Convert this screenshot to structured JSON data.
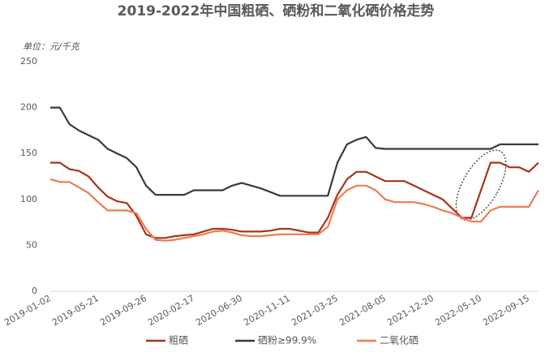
{
  "chart_data": {
    "type": "line",
    "title": "2019-2022年中国粗硒、硒粉和二氧化硒价格走势",
    "y_label": "单位：元/千克",
    "categories": [
      "2019-01-02",
      null,
      null,
      null,
      null,
      "2019-05-21",
      null,
      null,
      null,
      null,
      "2019-09-26",
      null,
      null,
      null,
      null,
      "2020-02-17",
      null,
      null,
      null,
      null,
      "2020-06-30",
      null,
      null,
      null,
      null,
      "2020-11-11",
      null,
      null,
      null,
      null,
      "2021-03-25",
      null,
      null,
      null,
      null,
      "2021-08-05",
      null,
      null,
      null,
      null,
      "2021-12-20",
      null,
      null,
      null,
      null,
      "2022-05-10",
      null,
      null,
      null,
      null,
      "2022-09-15",
      null
    ],
    "series": [
      {
        "name": "粗硒",
        "color": "#a8341c",
        "values": [
          140,
          140,
          133,
          131,
          125,
          113,
          103,
          98,
          96,
          82,
          62,
          58,
          58,
          60,
          61,
          62,
          65,
          68,
          68,
          67,
          65,
          65,
          65,
          66,
          68,
          68,
          66,
          64,
          64,
          80,
          105,
          122,
          130,
          130,
          125,
          120,
          120,
          120,
          115,
          110,
          105,
          100,
          90,
          80,
          80,
          110,
          140,
          140,
          135,
          135,
          130,
          140
        ]
      },
      {
        "name": "硒粉≥99.9%",
        "color": "#3a3a3a",
        "values": [
          200,
          200,
          182,
          175,
          170,
          165,
          155,
          150,
          145,
          135,
          115,
          105,
          105,
          105,
          105,
          110,
          110,
          110,
          110,
          115,
          118,
          115,
          112,
          108,
          104,
          104,
          104,
          104,
          104,
          104,
          140,
          160,
          165,
          168,
          156,
          155,
          155,
          155,
          155,
          155,
          155,
          155,
          155,
          155,
          155,
          155,
          155,
          160,
          160,
          160,
          160,
          160
        ]
      },
      {
        "name": "二氧化硒",
        "color": "#f07a52",
        "values": [
          122,
          119,
          119,
          113,
          107,
          97,
          88,
          88,
          88,
          85,
          68,
          56,
          55,
          56,
          58,
          60,
          62,
          65,
          66,
          64,
          61,
          60,
          60,
          61,
          62,
          62,
          62,
          62,
          62,
          70,
          100,
          110,
          115,
          115,
          110,
          100,
          97,
          97,
          97,
          95,
          92,
          88,
          85,
          80,
          76,
          76,
          88,
          92,
          92,
          92,
          92,
          110
        ]
      }
    ],
    "ylim": [
      0,
      250
    ],
    "yticks": [
      0,
      50,
      100,
      150,
      200,
      250
    ],
    "grid": false,
    "legend": "bottom"
  }
}
